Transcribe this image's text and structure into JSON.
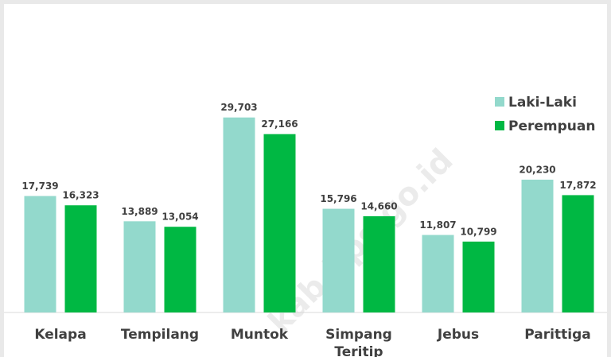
{
  "chart_data": {
    "type": "bar",
    "categories": [
      "Kelapa",
      "Tempilang",
      "Muntok",
      "Simpang Teritip",
      "Jebus",
      "Parittiga"
    ],
    "series": [
      {
        "name": "Laki-Laki",
        "color": "#93d9cc",
        "values": [
          17739,
          13889,
          29703,
          15796,
          11807,
          20230
        ],
        "value_labels": [
          "17,739",
          "13,889",
          "29,703",
          "15,796",
          "11,807",
          "20,230"
        ]
      },
      {
        "name": "Perempuan",
        "color": "#00b843",
        "values": [
          16323,
          13054,
          27166,
          14660,
          10799,
          17872
        ],
        "value_labels": [
          "16,323",
          "13,054",
          "27,166",
          "14,660",
          "10,799",
          "17,872"
        ]
      }
    ],
    "ylim": [
      0,
      35000
    ],
    "legend": "upper right",
    "watermark": "kab.bps.go.id"
  }
}
